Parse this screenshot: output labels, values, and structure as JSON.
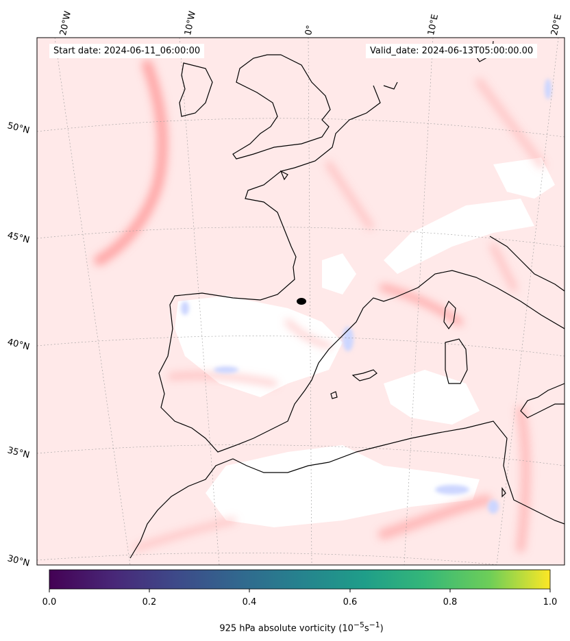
{
  "map": {
    "start_label": "Start date: 2024-06-11_06:00:00",
    "valid_label": "Valid_date: 2024-06-13T05:00:00.00",
    "lon_ticks": [
      "20°W",
      "10°W",
      "0°",
      "10°E",
      "20°E"
    ],
    "lat_ticks": [
      "50°N",
      "45°N",
      "40°N",
      "35°N",
      "30°N"
    ],
    "colors": {
      "field": "#ffe9e9",
      "positive": "#ff7a7a",
      "negative": "#c8d4ff",
      "coast": "#000000"
    }
  },
  "colorbar": {
    "ticks": [
      "0.0",
      "0.2",
      "0.4",
      "0.6",
      "0.8",
      "1.0"
    ],
    "label_prefix": "925 hPa absolute vorticity (10",
    "label_exp1": "−5",
    "label_mid": "s",
    "label_exp2": "−1",
    "label_suffix": ")",
    "colormap": "viridis"
  }
}
